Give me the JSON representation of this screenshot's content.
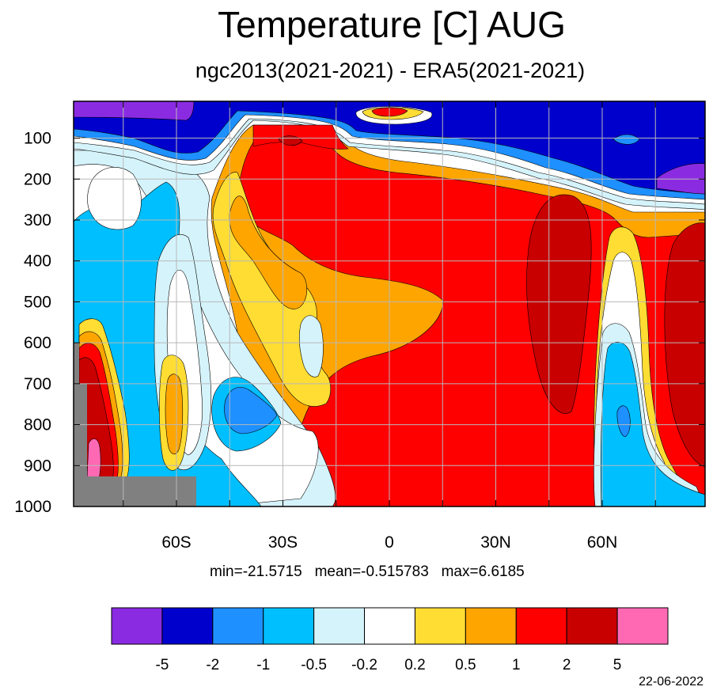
{
  "title": "Temperature [C] AUG",
  "subtitle": "ngc2013(2021-2021) - ERA5(2021-2021)",
  "stats": {
    "min": "min=-21.5715",
    "mean": "mean=-0.515783",
    "max": "max=6.6185"
  },
  "date": "22-06-2022",
  "chart_data": {
    "type": "heatmap",
    "title": "Temperature [C] AUG",
    "subtitle": "ngc2013(2021-2021) - ERA5(2021-2021)",
    "x_ticks": [
      {
        "value": -60,
        "label": "60S"
      },
      {
        "value": -30,
        "label": "30S"
      },
      {
        "value": 0,
        "label": "0"
      },
      {
        "value": 30,
        "label": "30N"
      },
      {
        "value": 60,
        "label": "60N"
      }
    ],
    "y_ticks": [
      {
        "value": 100,
        "label": "100"
      },
      {
        "value": 200,
        "label": "200"
      },
      {
        "value": 300,
        "label": "300"
      },
      {
        "value": 400,
        "label": "400"
      },
      {
        "value": 500,
        "label": "500"
      },
      {
        "value": 600,
        "label": "600"
      },
      {
        "value": 700,
        "label": "700"
      },
      {
        "value": 800,
        "label": "800"
      },
      {
        "value": 900,
        "label": "900"
      },
      {
        "value": 1000,
        "label": "1000"
      }
    ],
    "xlim": [
      -89,
      89
    ],
    "ylim": [
      1000,
      10
    ],
    "grid": true,
    "levels": [
      "-5",
      "-2",
      "-1",
      "-0.5",
      "-0.2",
      "0.2",
      "0.5",
      "1",
      "2",
      "5"
    ],
    "colors": [
      "#8a2be2",
      "#0000cd",
      "#1e90ff",
      "#00bfff",
      "#d5f3fb",
      "#ffffff",
      "#ffdd33",
      "#ffa500",
      "#ff0000",
      "#c80000",
      "#ff69b4"
    ],
    "missing_color": "#808080",
    "stats": {
      "min": -21.5715,
      "mean": -0.515783,
      "max": 6.6185
    }
  }
}
